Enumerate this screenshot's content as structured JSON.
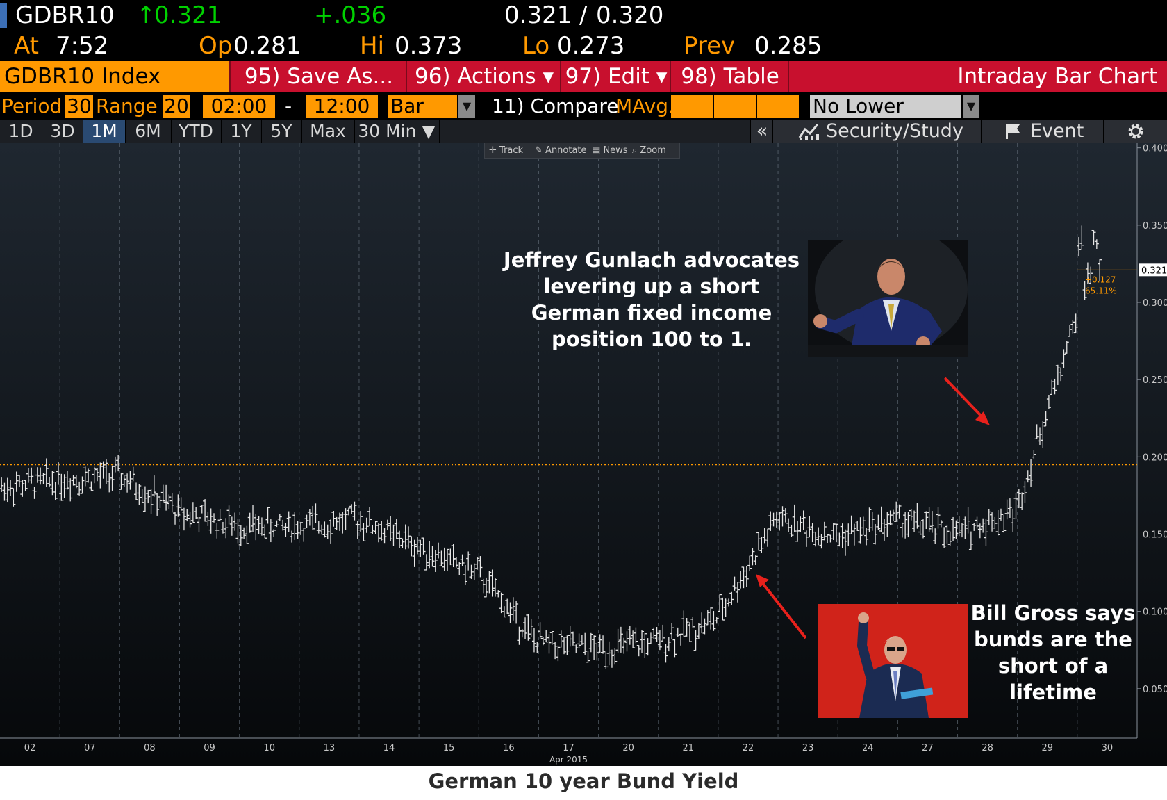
{
  "quote": {
    "ticker": "GDBR10",
    "last_arrow": "↑",
    "last": "0.321",
    "change": "+.036",
    "bid": "0.321",
    "ask_sep": "/",
    "ask": "0.320",
    "at_label": "At",
    "at_time": "7:52",
    "op_label": "Op",
    "op": "0.281",
    "hi_label": "Hi",
    "hi": "0.373",
    "lo_label": "Lo",
    "lo": "0.273",
    "prev_label": "Prev",
    "prev": "0.285"
  },
  "command_bar": {
    "security": "GDBR10 Index",
    "save_as": "95) Save As...",
    "actions": "96) Actions ▾",
    "edit": "97) Edit ▾",
    "table": "98) Table",
    "chart_name": "Intraday Bar Chart"
  },
  "settings": {
    "period_label": "Period",
    "period": "30",
    "range_label": "Range",
    "range": "20",
    "from": "02:00",
    "dash": "-",
    "to": "12:00",
    "chart_type": "Bar",
    "compare": "11) Compare",
    "mavg": "MAvg.",
    "lower_chart": "No Lower Chart"
  },
  "toolbar": {
    "ranges": [
      "1D",
      "3D",
      "1M",
      "6M",
      "YTD",
      "1Y",
      "5Y",
      "Max"
    ],
    "selected": "1M",
    "interval": "30 Min ▼",
    "collapse": "«",
    "security_study": "Security/Study",
    "event": "Event",
    "mini": [
      "Track",
      "Annotate",
      "News",
      "Zoom"
    ]
  },
  "chart_data": {
    "type": "bar",
    "title": "German 10 year Bund Yield",
    "x_tick_labels": [
      "02",
      "07",
      "08",
      "09",
      "10",
      "13",
      "14",
      "15",
      "16",
      "17",
      "20",
      "21",
      "22",
      "23",
      "24",
      "27",
      "28",
      "29",
      "30"
    ],
    "x_sublabel": "Apr 2015",
    "y_ticks": [
      "0.400",
      "0.350",
      "0.300",
      "0.250",
      "0.200",
      "0.150",
      "0.100",
      "0.050"
    ],
    "ylim": [
      0.018,
      0.403
    ],
    "reference_line": 0.195,
    "last_value_tag": "0.321",
    "change_abs": "+0.127",
    "change_pct": "65.11%",
    "daily_closes": [
      {
        "day": "02",
        "close": 0.185
      },
      {
        "day": "07",
        "close": 0.188
      },
      {
        "day": "08",
        "close": 0.165
      },
      {
        "day": "09",
        "close": 0.155
      },
      {
        "day": "10",
        "close": 0.155
      },
      {
        "day": "13",
        "close": 0.16
      },
      {
        "day": "14",
        "close": 0.142
      },
      {
        "day": "15",
        "close": 0.125
      },
      {
        "day": "16",
        "close": 0.08
      },
      {
        "day": "17",
        "close": 0.075
      },
      {
        "day": "20",
        "close": 0.08
      },
      {
        "day": "21",
        "close": 0.095
      },
      {
        "day": "22",
        "close": 0.16
      },
      {
        "day": "23",
        "close": 0.148
      },
      {
        "day": "24",
        "close": 0.16
      },
      {
        "day": "27",
        "close": 0.15
      },
      {
        "day": "28",
        "close": 0.165
      },
      {
        "day": "29",
        "close": 0.29
      },
      {
        "day": "30",
        "close": 0.321
      }
    ],
    "grid": true
  },
  "annotations": {
    "gundlach": "Jeffrey Gunlach advocates levering up a short German fixed income position 100 to 1.",
    "gross": "Bill Gross says bunds are the short of a lifetime"
  },
  "colors": {
    "amber": "#ff9900",
    "command_red": "#c8102e",
    "up_green": "#00d200",
    "arrow_red": "#e8211c"
  }
}
